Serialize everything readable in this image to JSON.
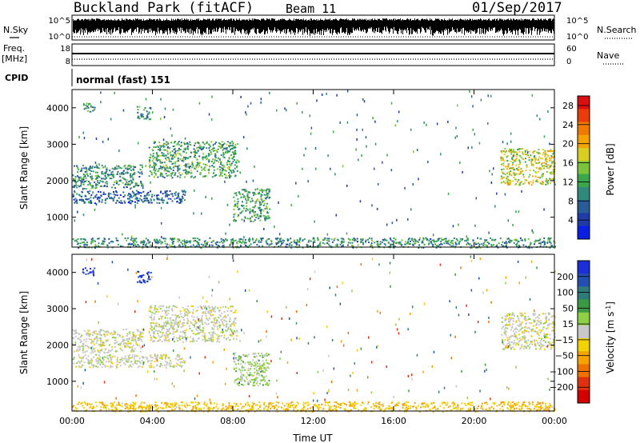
{
  "header": {
    "title": "Buckland Park (fitACF)",
    "beam": "Beam 11",
    "date": "01/Sep/2017"
  },
  "summary": {
    "nsky_label": "N.Sky",
    "nsky_ticks": [
      "10^5",
      "10^0"
    ],
    "nsearch_label": "N.Search",
    "nsearch_ticks": [
      "10^5",
      "10^0"
    ],
    "freq_label": "Freq.",
    "freq_unit": "[MHz]",
    "freq_ticks": [
      "18",
      "8"
    ],
    "nave_label": "Nave",
    "nave_ticks": [
      "60",
      "0"
    ],
    "cpid_label": "CPID",
    "cpid_text": "normal (fast) 151"
  },
  "colors": {
    "power_scale": [
      "#0a1ee6",
      "#1e3ca8",
      "#2b5c9a",
      "#2f8a7a",
      "#3aa84a",
      "#7cc33c",
      "#d9cf1f",
      "#f5a300",
      "#f07a00",
      "#ea3b0a",
      "#dc0f0f"
    ],
    "velocity_scale": [
      "#1a2fd8",
      "#234fb0",
      "#2f7a7a",
      "#3a9a44",
      "#8ed046",
      "#c8c8c8",
      "#f2d200",
      "#f5a300",
      "#f07000",
      "#e03010",
      "#d40000"
    ]
  },
  "chart_data": [
    {
      "type": "heatmap",
      "name": "power-panel",
      "ylabel": "Slant Range [km]",
      "xlabel": "Time UT",
      "x_ticks": [
        "00:00",
        "04:00",
        "08:00",
        "12:00",
        "16:00",
        "20:00",
        "00:00"
      ],
      "x_range_hours": [
        0,
        24
      ],
      "y_ticks": [
        "1000",
        "2000",
        "3000",
        "4000"
      ],
      "y_range_km": [
        180,
        4500
      ],
      "colorbar": {
        "label": "Power",
        "unit": "[dB]",
        "ticks": [
          "4",
          "8",
          "12",
          "16",
          "20",
          "24",
          "28"
        ],
        "range": [
          0,
          30
        ]
      },
      "echo_regions": [
        {
          "t_hours": [
            0.0,
            3.5
          ],
          "range_km": [
            1800,
            2450
          ],
          "level": 10
        },
        {
          "t_hours": [
            0.0,
            5.6
          ],
          "range_km": [
            1400,
            1750
          ],
          "level": 6
        },
        {
          "t_hours": [
            3.8,
            8.2
          ],
          "range_km": [
            2100,
            3100
          ],
          "level": 12
        },
        {
          "t_hours": [
            0.5,
            1.1
          ],
          "range_km": [
            3900,
            4150
          ],
          "level": 11
        },
        {
          "t_hours": [
            3.2,
            3.9
          ],
          "range_km": [
            3700,
            4050
          ],
          "level": 10
        },
        {
          "t_hours": [
            8.0,
            9.8
          ],
          "range_km": [
            900,
            1800
          ],
          "level": 12
        },
        {
          "t_hours": [
            21.3,
            24.0
          ],
          "range_km": [
            1900,
            2900
          ],
          "level": 17
        },
        {
          "t_hours": [
            0.0,
            24.0
          ],
          "range_km": [
            180,
            450
          ],
          "level": 10
        }
      ]
    },
    {
      "type": "heatmap",
      "name": "velocity-panel",
      "ylabel": "Slant Range [km]",
      "xlabel": "Time UT",
      "x_ticks": [
        "00:00",
        "04:00",
        "08:00",
        "12:00",
        "16:00",
        "20:00",
        "00:00"
      ],
      "x_range_hours": [
        0,
        24
      ],
      "y_ticks": [
        "1000",
        "2000",
        "3000",
        "4000"
      ],
      "y_range_km": [
        180,
        4500
      ],
      "colorbar": {
        "label": "Velocity",
        "unit": "[m s",
        "unit_sup": "-1",
        "unit_end": "]",
        "ticks": [
          "200",
          "100",
          "50",
          "15",
          "−15",
          "−50",
          "−100",
          "−200"
        ],
        "range": [
          -250,
          250
        ]
      },
      "echo_regions": [
        {
          "t_hours": [
            0.0,
            3.5
          ],
          "range_km": [
            1800,
            2450
          ],
          "velocity": 0
        },
        {
          "t_hours": [
            0.0,
            5.6
          ],
          "range_km": [
            1400,
            1750
          ],
          "velocity": 0
        },
        {
          "t_hours": [
            3.8,
            8.2
          ],
          "range_km": [
            2100,
            3100
          ],
          "velocity": 0
        },
        {
          "t_hours": [
            0.5,
            1.1
          ],
          "range_km": [
            3900,
            4150
          ],
          "velocity": 220
        },
        {
          "t_hours": [
            3.2,
            3.9
          ],
          "range_km": [
            3700,
            4050
          ],
          "velocity": 220
        },
        {
          "t_hours": [
            8.0,
            9.8
          ],
          "range_km": [
            900,
            1800
          ],
          "velocity": 40
        },
        {
          "t_hours": [
            21.3,
            24.0
          ],
          "range_km": [
            1900,
            2900
          ],
          "velocity": 0
        },
        {
          "t_hours": [
            0.0,
            24.0
          ],
          "range_km": [
            180,
            450
          ],
          "velocity": -60
        }
      ]
    }
  ]
}
